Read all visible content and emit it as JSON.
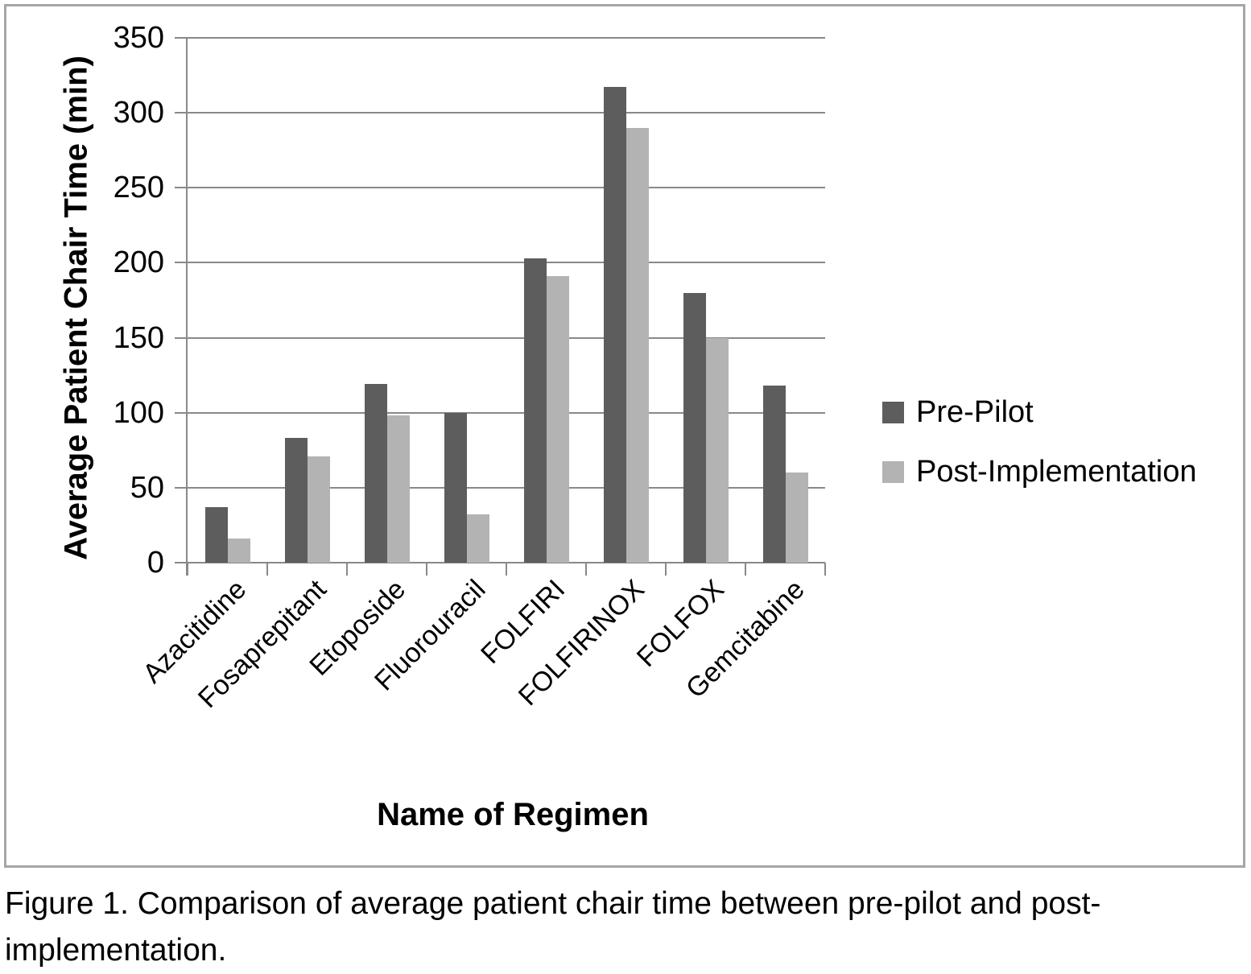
{
  "chart_data": {
    "type": "bar",
    "categories": [
      "Azacitidine",
      "Fosaprepitant",
      "Etoposide",
      "Fluorouracil",
      "FOLFIRI",
      "FOLFIRINOX",
      "FOLFOX",
      "Gemcitabine"
    ],
    "series": [
      {
        "name": "Pre-Pilot",
        "color": "#5d5d5d",
        "values": [
          37,
          83,
          119,
          100,
          203,
          317,
          180,
          118
        ]
      },
      {
        "name": "Post-Implementation",
        "color": "#b3b3b3",
        "values": [
          16,
          71,
          98,
          32,
          191,
          290,
          150,
          60
        ]
      }
    ],
    "xlabel": "Name of Regimen",
    "ylabel": "Average Patient Chair Time (min)",
    "ylim": [
      0,
      350
    ],
    "yticks": [
      0,
      50,
      100,
      150,
      200,
      250,
      300,
      350
    ],
    "grid": true,
    "legend_position": "right-middle"
  },
  "colors": {
    "gridline": "#898989",
    "frame_border": "#a6a6a6",
    "pre_pilot_bar": "#5d5d5d",
    "post_implementation_bar": "#b3b3b3"
  },
  "caption": "Figure 1. Comparison of average patient chair time between pre-pilot and post-implementation."
}
